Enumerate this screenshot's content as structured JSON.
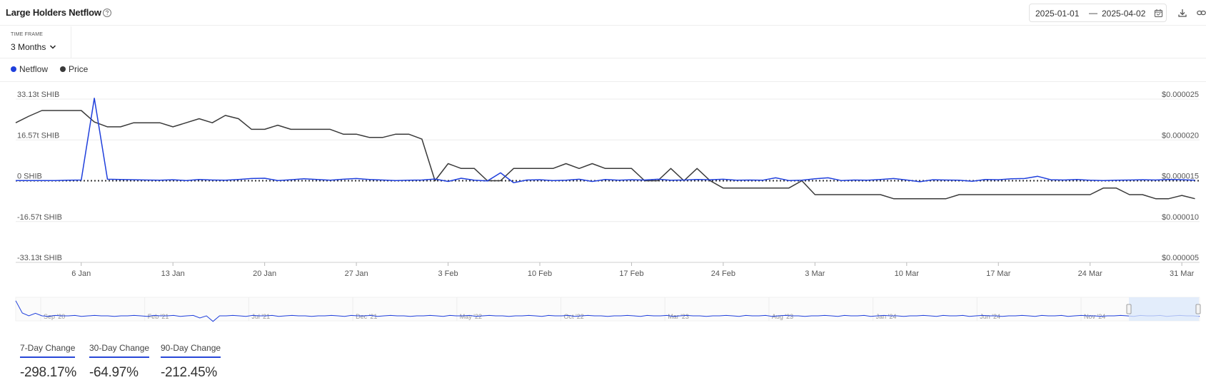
{
  "header": {
    "title": "Large Holders Netflow",
    "date_start": "2025-01-01",
    "date_separator": "—",
    "date_end": "2025-04-02"
  },
  "timeframe": {
    "label": "TIME FRAME",
    "value": "3 Months"
  },
  "legend": [
    {
      "name": "Netflow",
      "color": "#1f3fdc"
    },
    {
      "name": "Price",
      "color": "#3a3a3a"
    }
  ],
  "stats": [
    {
      "label": "7-Day Change",
      "value": "-298.17%"
    },
    {
      "label": "30-Day Change",
      "value": "-64.97%"
    },
    {
      "label": "90-Day Change",
      "value": "-212.45%"
    }
  ],
  "chart_data": {
    "type": "line",
    "title": "Large Holders Netflow",
    "x_start_date": "2025-01-01",
    "x_step_days": 1,
    "x_ticks": [
      {
        "label": "6 Jan",
        "day": 5
      },
      {
        "label": "13 Jan",
        "day": 12
      },
      {
        "label": "20 Jan",
        "day": 19
      },
      {
        "label": "27 Jan",
        "day": 26
      },
      {
        "label": "3 Feb",
        "day": 33
      },
      {
        "label": "10 Feb",
        "day": 40
      },
      {
        "label": "17 Feb",
        "day": 47
      },
      {
        "label": "24 Feb",
        "day": 54
      },
      {
        "label": "3 Mar",
        "day": 61
      },
      {
        "label": "10 Mar",
        "day": 68
      },
      {
        "label": "17 Mar",
        "day": 75
      },
      {
        "label": "24 Mar",
        "day": 82
      },
      {
        "label": "31 Mar",
        "day": 89
      }
    ],
    "y_left": {
      "ticks": [
        "33.13t SHIB",
        "16.57t SHIB",
        "0 SHIB",
        "-16.57t SHIB",
        "-33.13t SHIB"
      ],
      "range": [
        -33.13,
        33.13
      ],
      "unit": "t SHIB"
    },
    "y_right": {
      "ticks": [
        "$0.000025",
        "$0.000020",
        "$0.000015",
        "$0.000010",
        "$0.000005"
      ],
      "range": [
        5e-06,
        2.5e-05
      ]
    },
    "series": [
      {
        "name": "Netflow",
        "axis": "left",
        "color": "#1f3fdc",
        "values": [
          0.1,
          0.1,
          0.1,
          0.1,
          0.2,
          0.3,
          33.5,
          0.6,
          0.5,
          0.4,
          0.3,
          0.2,
          0.4,
          0.1,
          0.5,
          0.3,
          0.2,
          0.5,
          0.9,
          1.0,
          0.1,
          0.4,
          0.8,
          0.5,
          0.2,
          0.6,
          0.9,
          0.5,
          0.3,
          0.1,
          0.2,
          0.3,
          0.7,
          -0.3,
          1.0,
          0.2,
          -0.1,
          3.2,
          -0.8,
          0.3,
          0.4,
          0.1,
          0.2,
          0.6,
          -0.3,
          0.5,
          0.2,
          0.4,
          0.3,
          0.6,
          0.2,
          0.3,
          0.5,
          0.4,
          0.6,
          0.2,
          0.3,
          0.2,
          1.2,
          0.1,
          0.2,
          0.8,
          1.2,
          0.1,
          0.3,
          0.2,
          0.5,
          0.9,
          0.3,
          -0.4,
          0.4,
          0.3,
          0.2,
          -0.2,
          0.5,
          0.4,
          0.8,
          0.9,
          1.8,
          0.4,
          0.3,
          0.5,
          0.2,
          0.1,
          0.2,
          0.3,
          0.4,
          0.3,
          0.5,
          0.4,
          0.2
        ]
      },
      {
        "name": "Price",
        "axis": "right",
        "color": "#3a3a3a",
        "values": [
          2.21e-05,
          2.29e-05,
          2.36e-05,
          2.36e-05,
          2.36e-05,
          2.36e-05,
          2.22e-05,
          2.16e-05,
          2.16e-05,
          2.21e-05,
          2.21e-05,
          2.21e-05,
          2.16e-05,
          2.21e-05,
          2.26e-05,
          2.21e-05,
          2.3e-05,
          2.26e-05,
          2.13e-05,
          2.13e-05,
          2.18e-05,
          2.13e-05,
          2.13e-05,
          2.13e-05,
          2.13e-05,
          2.07e-05,
          2.07e-05,
          2.03e-05,
          2.03e-05,
          2.07e-05,
          2.07e-05,
          2.01e-05,
          1.5e-05,
          1.71e-05,
          1.65e-05,
          1.65e-05,
          1.5e-05,
          1.5e-05,
          1.65e-05,
          1.65e-05,
          1.65e-05,
          1.65e-05,
          1.71e-05,
          1.65e-05,
          1.71e-05,
          1.65e-05,
          1.65e-05,
          1.65e-05,
          1.5e-05,
          1.5e-05,
          1.65e-05,
          1.5e-05,
          1.65e-05,
          1.5e-05,
          1.41e-05,
          1.41e-05,
          1.41e-05,
          1.41e-05,
          1.41e-05,
          1.41e-05,
          1.5e-05,
          1.33e-05,
          1.33e-05,
          1.33e-05,
          1.33e-05,
          1.33e-05,
          1.33e-05,
          1.28e-05,
          1.28e-05,
          1.28e-05,
          1.28e-05,
          1.28e-05,
          1.33e-05,
          1.33e-05,
          1.33e-05,
          1.33e-05,
          1.33e-05,
          1.33e-05,
          1.33e-05,
          1.33e-05,
          1.33e-05,
          1.33e-05,
          1.33e-05,
          1.41e-05,
          1.41e-05,
          1.33e-05,
          1.33e-05,
          1.28e-05,
          1.28e-05,
          1.32e-05,
          1.28e-05
        ]
      }
    ],
    "zero_line": "dotted",
    "grid": "horizontal",
    "navigator": {
      "ticks": [
        "Sep '20",
        "Feb '21",
        "Jul '21",
        "Dec '21",
        "May '22",
        "Oct '22",
        "Mar '23",
        "Aug '23",
        "Jan '24",
        "Jun '24",
        "Nov '24"
      ]
    }
  }
}
